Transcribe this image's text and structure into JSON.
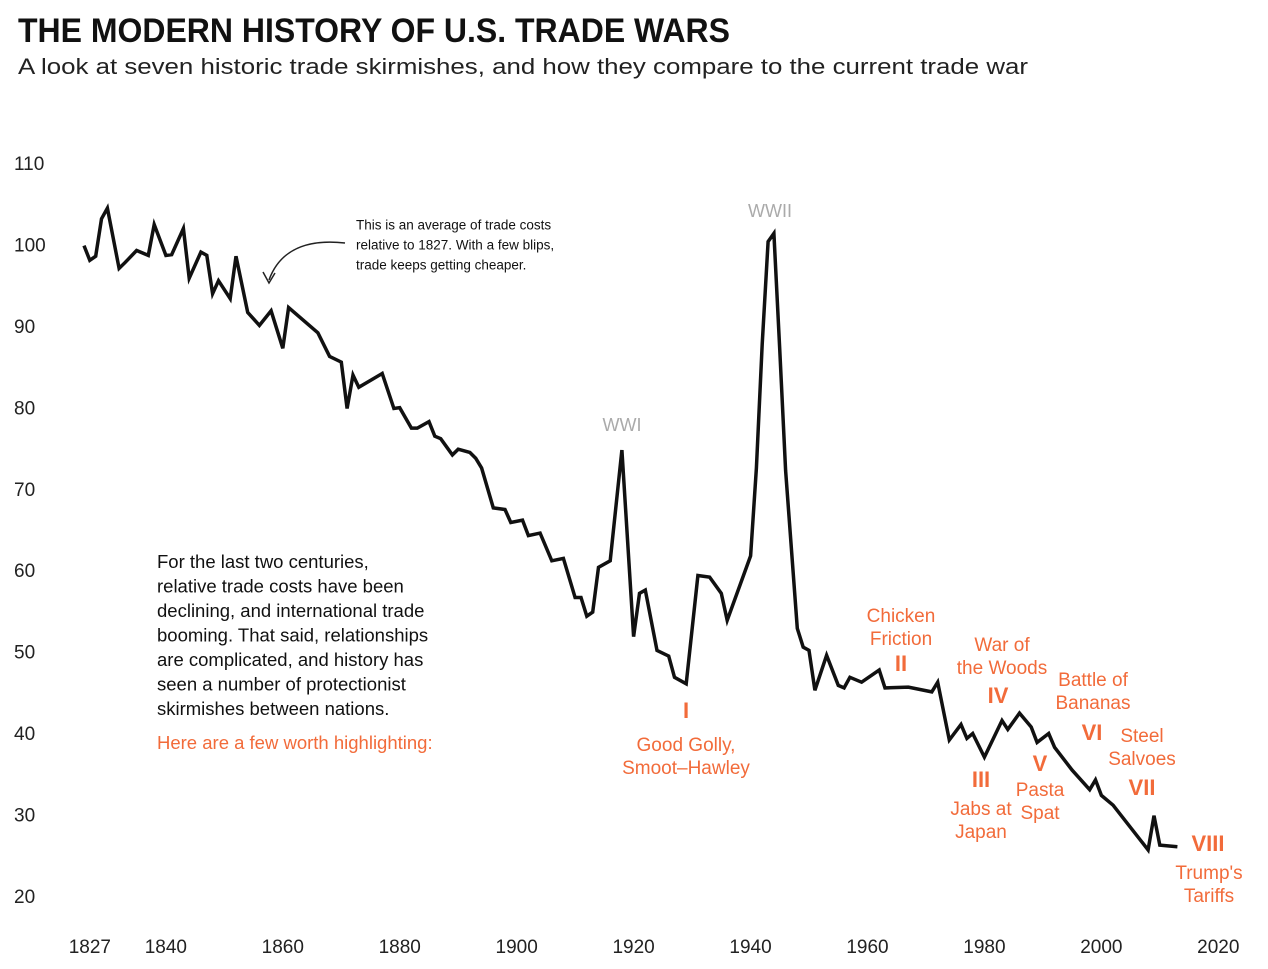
{
  "chart_data": {
    "type": "line",
    "title": "THE MODERN HISTORY OF U.S. TRADE WARS",
    "subtitle": "A look at seven historic trade skirmishes, and how they compare to the current trade war",
    "x": [
      1826,
      1827,
      1828,
      1829,
      1830,
      1832,
      1833,
      1835,
      1837,
      1838,
      1840,
      1841,
      1843,
      1844,
      1846,
      1847,
      1848,
      1849,
      1851,
      1852,
      1854,
      1856,
      1858,
      1860,
      1861,
      1866,
      1868,
      1870,
      1871,
      1872,
      1873,
      1877,
      1879,
      1880,
      1882,
      1883,
      1885,
      1886,
      1887,
      1889,
      1890,
      1892,
      1893,
      1894,
      1896,
      1898,
      1899,
      1901,
      1902,
      1904,
      1906,
      1908,
      1910,
      1911,
      1912,
      1913,
      1914,
      1916,
      1918,
      1920,
      1921,
      1922,
      1924,
      1926,
      1927,
      1929,
      1931,
      1933,
      1935,
      1936,
      1940,
      1941,
      1942,
      1943,
      1944,
      1945,
      1946,
      1948,
      1949,
      1950,
      1951,
      1953,
      1955,
      1956,
      1957,
      1959,
      1962,
      1963,
      1967,
      1971,
      1972,
      1974,
      1976,
      1977,
      1978,
      1980,
      1983,
      1984,
      1986,
      1988,
      1989,
      1991,
      1992,
      1995,
      1998,
      1999,
      2000,
      2002,
      2008,
      2009,
      2010,
      2013
    ],
    "series": [
      {
        "name": "Trade costs relative to 1827",
        "color": "#111111",
        "values": [
          100.1,
          98.3,
          98.8,
          103.4,
          104.7,
          97.3,
          98,
          99.5,
          98.9,
          102.7,
          98.9,
          99,
          102.2,
          96.1,
          99.3,
          98.9,
          94.2,
          95.8,
          93.6,
          98.8,
          91.9,
          90.3,
          92.1,
          87.5,
          92.5,
          89.4,
          86.5,
          85.8,
          80.1,
          84.2,
          82.7,
          84.4,
          80.1,
          80.2,
          77.7,
          77.7,
          78.5,
          76.7,
          76.4,
          74.4,
          75.1,
          74.7,
          74,
          72.8,
          67.9,
          67.7,
          66.1,
          66.4,
          64.5,
          64.8,
          61.4,
          61.7,
          56.9,
          56.9,
          54.6,
          55.1,
          60.6,
          61.4,
          75,
          52.1,
          57.4,
          57.8,
          50.4,
          49.7,
          47.1,
          46.3,
          59.6,
          59.4,
          57.4,
          54.1,
          62,
          72.8,
          88,
          100.6,
          101.6,
          87.2,
          72.5,
          53.1,
          50.8,
          50.4,
          45.5,
          49.8,
          46.1,
          45.8,
          47.1,
          46.5,
          48,
          45.8,
          45.9,
          45.3,
          46.5,
          39.4,
          41.3,
          39.6,
          40.2,
          37.3,
          41.8,
          40.7,
          42.7,
          41,
          39.1,
          40.2,
          38.5,
          35.7,
          33.3,
          34.5,
          32.6,
          31.4,
          25.9,
          30.1,
          26.5,
          26.3
        ]
      }
    ],
    "xlim": [
      1826,
      2022
    ],
    "xticks": [
      1827,
      1840,
      1860,
      1880,
      1900,
      1920,
      1940,
      1960,
      1980,
      2000,
      2020
    ],
    "ylim": [
      20,
      110
    ],
    "yticks": [
      20,
      30,
      40,
      50,
      60,
      70,
      80,
      90,
      100,
      110
    ],
    "grid": false,
    "notes": {
      "wwi": "WWI",
      "wwii": "WWII",
      "arrow_note": [
        "This is an average of trade costs",
        "relative to 1827. With a few blips,",
        "trade keeps getting cheaper."
      ],
      "intro": [
        "For the last two centuries,",
        "relative trade costs have been",
        "declining, and international trade",
        "booming. That said, relationships",
        "are complicated, and history has",
        "seen a number of protectionist",
        "skirmishes between nations."
      ],
      "highlight": "Here are a few worth highlighting:"
    },
    "trade_wars": [
      {
        "numeral": "I",
        "label": [
          "Good Golly,",
          "Smoot–Hawley"
        ]
      },
      {
        "numeral": "II",
        "label": [
          "Chicken",
          "Friction"
        ]
      },
      {
        "numeral": "III",
        "label": [
          "Jabs at",
          "Japan"
        ]
      },
      {
        "numeral": "IV",
        "label": [
          "War of",
          "the Woods"
        ]
      },
      {
        "numeral": "V",
        "label": [
          "Pasta",
          "Spat"
        ]
      },
      {
        "numeral": "VI",
        "label": [
          "Battle of",
          "Bananas"
        ]
      },
      {
        "numeral": "VII",
        "label": [
          "Steel",
          "Salvoes"
        ]
      },
      {
        "numeral": "VIII",
        "label": [
          "Trump's",
          "Tariffs"
        ]
      }
    ]
  }
}
